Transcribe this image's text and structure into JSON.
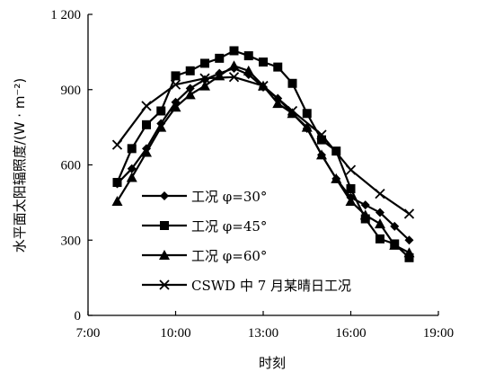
{
  "chart_data": {
    "type": "line",
    "xlabel": "时刻",
    "ylabel": "水平面太阳辐照度/(W · m⁻²)",
    "xlim": [
      7,
      19
    ],
    "ylim": [
      0,
      1200
    ],
    "xticks": [
      7,
      10,
      13,
      16,
      19
    ],
    "xtick_labels": [
      "7:00",
      "10:00",
      "13:00",
      "16:00",
      "19:00"
    ],
    "yticks": [
      0,
      300,
      600,
      900,
      1200
    ],
    "ytick_labels": [
      "0",
      "300",
      "600",
      "900",
      "1 200"
    ],
    "grid": false,
    "legend_position": "bottom-left",
    "series": [
      {
        "name": "工况 φ=30°",
        "marker": "diamond",
        "x": [
          8,
          8.5,
          9,
          9.5,
          10,
          10.5,
          11,
          11.5,
          12,
          12.5,
          13,
          13.5,
          14,
          14.5,
          15,
          15.5,
          16,
          16.5,
          17,
          17.5,
          18
        ],
        "y": [
          525,
          585,
          665,
          765,
          850,
          905,
          940,
          965,
          985,
          960,
          910,
          865,
          805,
          745,
          640,
          545,
          470,
          440,
          410,
          355,
          300
        ]
      },
      {
        "name": "工况 φ=45°",
        "marker": "square",
        "x": [
          8,
          8.5,
          9,
          9.5,
          10,
          10.5,
          11,
          11.5,
          12,
          12.5,
          13,
          13.5,
          14,
          14.5,
          15,
          15.5,
          16,
          16.5,
          17,
          17.5,
          18
        ],
        "y": [
          530,
          665,
          760,
          815,
          955,
          975,
          1005,
          1025,
          1055,
          1035,
          1010,
          990,
          925,
          805,
          700,
          655,
          505,
          385,
          305,
          285,
          230
        ]
      },
      {
        "name": "工况 φ=60°",
        "marker": "triangle",
        "x": [
          8,
          8.5,
          9,
          9.5,
          10,
          10.5,
          11,
          11.5,
          12,
          12.5,
          13,
          13.5,
          14,
          14.5,
          15,
          15.5,
          16,
          16.5,
          17,
          17.5,
          18
        ],
        "y": [
          455,
          550,
          650,
          750,
          830,
          880,
          915,
          955,
          995,
          975,
          915,
          845,
          805,
          750,
          640,
          545,
          455,
          400,
          365,
          280,
          250
        ]
      },
      {
        "name": "CSWD 中 7 月某晴日工况",
        "marker": "x",
        "x": [
          8,
          9,
          10,
          11,
          12,
          13,
          14,
          15,
          16,
          17,
          18
        ],
        "y": [
          680,
          835,
          920,
          945,
          950,
          915,
          815,
          720,
          580,
          485,
          405
        ]
      }
    ]
  }
}
